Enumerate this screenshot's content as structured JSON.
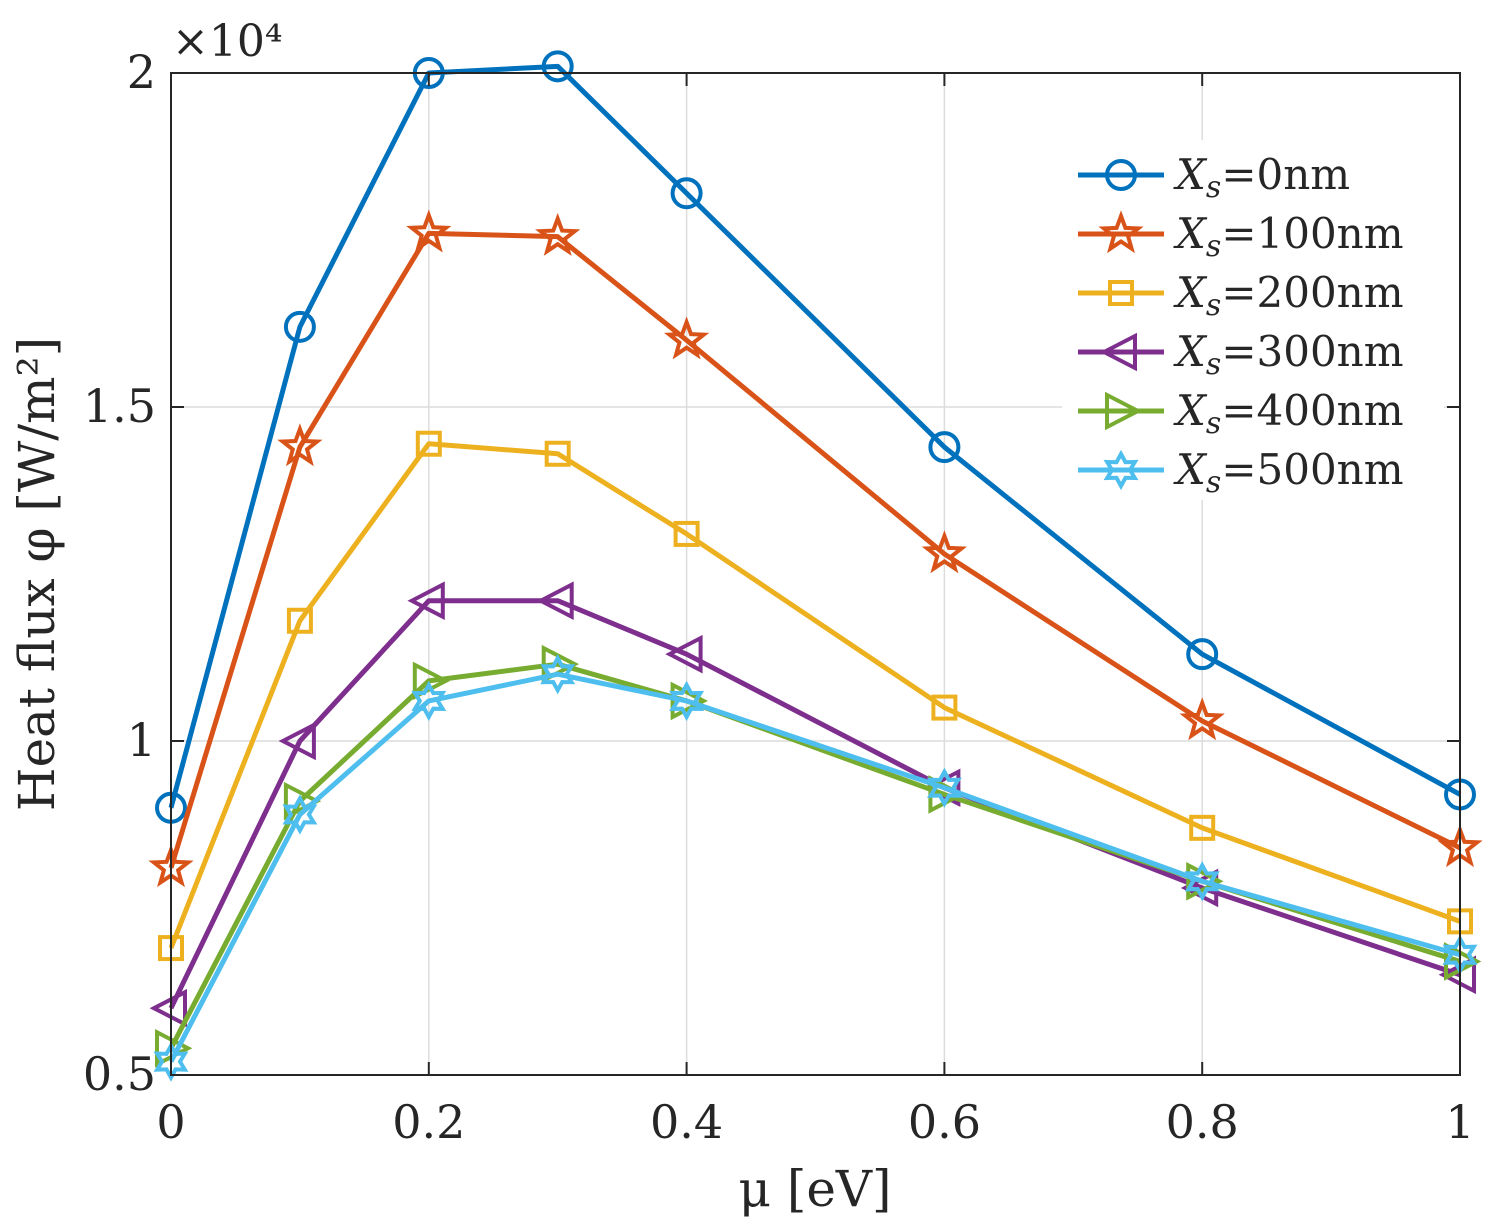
{
  "chart_data": {
    "type": "line",
    "xlabel": "μ [eV]",
    "ylabel": "Heat flux φ [W/m²]",
    "y_scale_label": "×10⁴",
    "xlim": [
      0,
      1
    ],
    "ylim": [
      0.5,
      2
    ],
    "x_ticks": [
      0,
      0.2,
      0.4,
      0.6,
      0.8,
      1
    ],
    "x_tick_labels": [
      "0",
      "0.2",
      "0.4",
      "0.6",
      "0.8",
      "1"
    ],
    "y_ticks": [
      0.5,
      1,
      1.5,
      2
    ],
    "y_tick_labels": [
      "0.5",
      "1",
      "1.5",
      "2"
    ],
    "grid": true,
    "legend_position": "top-right",
    "x": [
      0,
      0.1,
      0.2,
      0.3,
      0.4,
      0.6,
      0.8,
      1.0
    ],
    "series": [
      {
        "name": "Xs=0nm",
        "legend_var": "X",
        "legend_sub": "s",
        "legend_rest": "=0nm",
        "color": "#0072BD",
        "marker": "circle",
        "values": [
          0.9,
          1.62,
          2.0,
          2.01,
          1.82,
          1.44,
          1.13,
          0.92
        ]
      },
      {
        "name": "Xs=100nm",
        "legend_var": "X",
        "legend_sub": "s",
        "legend_rest": "=100nm",
        "color": "#D95319",
        "marker": "star",
        "values": [
          0.81,
          1.44,
          1.76,
          1.755,
          1.6,
          1.28,
          1.03,
          0.84
        ]
      },
      {
        "name": "Xs=200nm",
        "legend_var": "X",
        "legend_sub": "s",
        "legend_rest": "=200nm",
        "color": "#EDB120",
        "marker": "square",
        "values": [
          0.69,
          1.18,
          1.445,
          1.43,
          1.31,
          1.05,
          0.87,
          0.73
        ]
      },
      {
        "name": "Xs=300nm",
        "legend_var": "X",
        "legend_sub": "s",
        "legend_rest": "=300nm",
        "color": "#7E2F8E",
        "marker": "triangle-left",
        "values": [
          0.6,
          1.0,
          1.21,
          1.21,
          1.13,
          0.93,
          0.78,
          0.65
        ]
      },
      {
        "name": "Xs=400nm",
        "legend_var": "X",
        "legend_sub": "s",
        "legend_rest": "=400nm",
        "color": "#77AC30",
        "marker": "triangle-right",
        "values": [
          0.54,
          0.91,
          1.09,
          1.115,
          1.06,
          0.92,
          0.79,
          0.67
        ]
      },
      {
        "name": "Xs=500nm",
        "legend_var": "X",
        "legend_sub": "s",
        "legend_rest": "=500nm",
        "color": "#4DBEEE",
        "marker": "hexagram",
        "values": [
          0.52,
          0.89,
          1.06,
          1.1,
          1.06,
          0.93,
          0.79,
          0.68
        ]
      }
    ]
  }
}
